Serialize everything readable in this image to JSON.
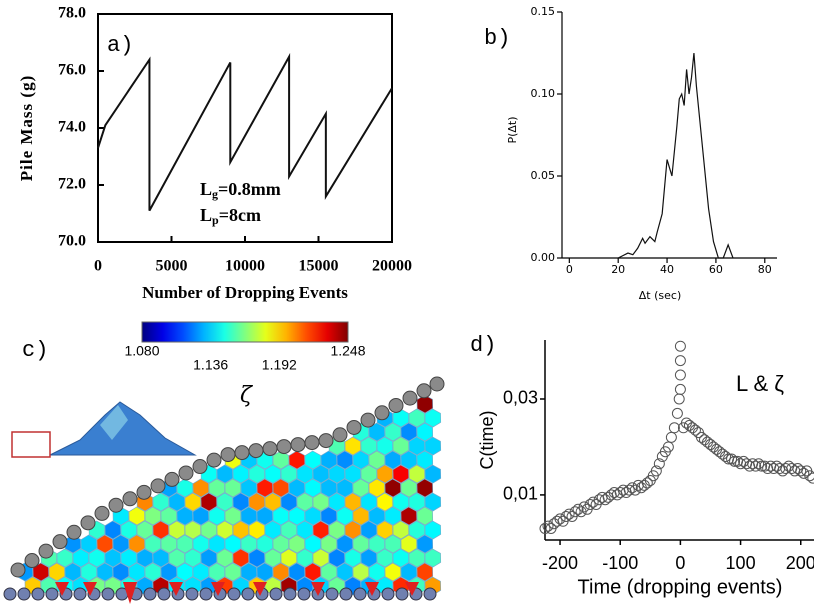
{
  "chart_data": [
    {
      "type": "line",
      "panel_label": "a)",
      "xlabel": "Number of Dropping Events",
      "ylabel": "Pile Mass (g)",
      "annotations": [
        {
          "text": "L",
          "sub": "g",
          "rest": "=0.8mm"
        },
        {
          "text": "L",
          "sub": "p",
          "rest": "=8cm"
        }
      ],
      "x": [
        0,
        500,
        3500,
        3500,
        9000,
        9000,
        13000,
        13000,
        15500,
        15500,
        20000
      ],
      "y": [
        73.3,
        74.1,
        76.4,
        71.1,
        76.3,
        72.8,
        76.5,
        72.3,
        74.5,
        71.6,
        75.4
      ],
      "color": "#111111",
      "xlim": [
        0,
        20000
      ],
      "xticks": [
        0,
        5000,
        10000,
        15000,
        20000
      ],
      "ylim": [
        70,
        78
      ],
      "yticks": [
        {
          "value": 70,
          "label": "70.0"
        },
        {
          "value": 72,
          "label": "72.0"
        },
        {
          "value": 74,
          "label": "74.0"
        },
        {
          "value": 76,
          "label": "76.0"
        },
        {
          "value": 78,
          "label": "78.0"
        }
      ]
    },
    {
      "type": "line",
      "panel_label": "b)",
      "xlabel": "Δt (sec)",
      "ylabel": "P(Δt)",
      "x": [
        20,
        24,
        26,
        28,
        30,
        31,
        33,
        35,
        36,
        38,
        40,
        41,
        42,
        44,
        45,
        46,
        47,
        48,
        49,
        50,
        51,
        52,
        53,
        55,
        57,
        59,
        61,
        63,
        65,
        67
      ],
      "y": [
        0,
        0.003,
        0.002,
        0.006,
        0.012,
        0.009,
        0.013,
        0.01,
        0.016,
        0.027,
        0.06,
        0.055,
        0.05,
        0.08,
        0.097,
        0.1,
        0.093,
        0.115,
        0.1,
        0.11,
        0.125,
        0.105,
        0.09,
        0.06,
        0.03,
        0.01,
        0,
        0,
        0.008,
        0
      ],
      "color": "#111111",
      "xlim": [
        -3,
        85
      ],
      "xticks": [
        0,
        20,
        40,
        60,
        80
      ],
      "ylim": [
        0,
        0.15
      ],
      "yticks": [
        {
          "value": 0,
          "label": "0.00"
        },
        {
          "value": 0.05,
          "label": "0.05"
        },
        {
          "value": 0.1,
          "label": "0.10"
        },
        {
          "value": 0.15,
          "label": "0.15"
        }
      ]
    },
    {
      "type": "colorbar",
      "panel_label": "c)",
      "title": "ζ",
      "colormap": "jet",
      "clim": [
        1.08,
        1.248
      ],
      "ticks": [
        {
          "value": 1.08,
          "label": "1.080"
        },
        {
          "value": 1.136,
          "label": "1.136"
        },
        {
          "value": 1.192,
          "label": "1.192"
        },
        {
          "value": 1.248,
          "label": "1.248"
        }
      ]
    },
    {
      "type": "scatter",
      "panel_label": "d)",
      "xlabel": "Time (dropping events)",
      "ylabel": "C(time)",
      "annotation": "L & ζ",
      "x": [
        -225,
        -220,
        -215,
        -210,
        -205,
        -200,
        -195,
        -190,
        -185,
        -180,
        -175,
        -170,
        -165,
        -160,
        -155,
        -150,
        -145,
        -140,
        -135,
        -130,
        -125,
        -120,
        -115,
        -110,
        -105,
        -100,
        -95,
        -90,
        -85,
        -80,
        -75,
        -70,
        -65,
        -60,
        -55,
        -50,
        -45,
        -40,
        -35,
        -30,
        -25,
        -20,
        -15,
        -10,
        -5,
        0,
        5,
        10,
        15,
        20,
        25,
        30,
        35,
        40,
        45,
        50,
        55,
        60,
        65,
        70,
        75,
        80,
        85,
        90,
        95,
        100,
        105,
        110,
        115,
        120,
        125,
        130,
        135,
        140,
        145,
        150,
        155,
        160,
        165,
        170,
        175,
        180,
        185,
        190,
        195,
        200,
        205,
        210,
        215,
        220,
        0,
        0,
        0,
        -2
      ],
      "y": [
        0.003,
        0.0035,
        0.003,
        0.004,
        0.0045,
        0.005,
        0.0045,
        0.0055,
        0.006,
        0.0055,
        0.0065,
        0.007,
        0.0065,
        0.0075,
        0.007,
        0.008,
        0.0085,
        0.008,
        0.009,
        0.0095,
        0.009,
        0.0095,
        0.01,
        0.0105,
        0.01,
        0.0105,
        0.011,
        0.0105,
        0.011,
        0.0115,
        0.011,
        0.012,
        0.0115,
        0.012,
        0.0125,
        0.013,
        0.014,
        0.015,
        0.0165,
        0.018,
        0.019,
        0.02,
        0.022,
        0.024,
        0.027,
        0.041,
        0.024,
        0.025,
        0.0245,
        0.024,
        0.0235,
        0.023,
        0.022,
        0.0215,
        0.021,
        0.0205,
        0.02,
        0.0195,
        0.019,
        0.0185,
        0.018,
        0.0175,
        0.0175,
        0.017,
        0.017,
        0.0165,
        0.017,
        0.0165,
        0.016,
        0.0165,
        0.016,
        0.0165,
        0.016,
        0.016,
        0.0155,
        0.016,
        0.0155,
        0.016,
        0.0155,
        0.015,
        0.0155,
        0.016,
        0.0155,
        0.015,
        0.0155,
        0.015,
        0.0145,
        0.015,
        0.014,
        0.0135,
        0.038,
        0.035,
        0.032,
        0.03
      ],
      "color": "#555555",
      "xlim": [
        -225,
        222
      ],
      "xticks": [
        -200,
        -100,
        0,
        100,
        200
      ],
      "ylim": [
        0.0006,
        0.0423
      ],
      "yticks": [
        {
          "value": 0.01,
          "label": "0,01"
        },
        {
          "value": 0.03,
          "label": "0,03"
        }
      ]
    }
  ]
}
